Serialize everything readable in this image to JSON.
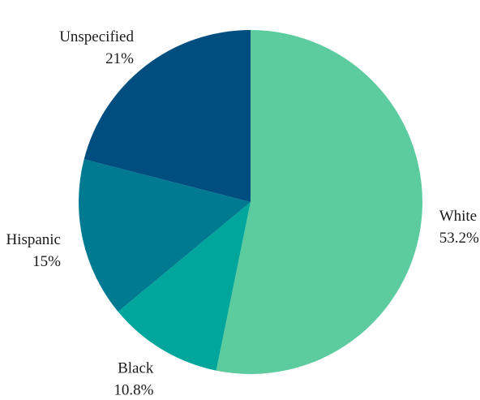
{
  "chart_data": {
    "type": "pie",
    "slices": [
      {
        "label": "White",
        "value_text": "53.2%",
        "value": 53.2,
        "color": "#5ccc9e"
      },
      {
        "label": "Black",
        "value_text": "10.8%",
        "value": 10.8,
        "color": "#00a69c"
      },
      {
        "label": "Hispanic",
        "value_text": "15%",
        "value": 15,
        "color": "#007a91"
      },
      {
        "label": "Unspecified",
        "value_text": "21%",
        "value": 21,
        "color": "#004d80"
      }
    ],
    "start_position": "12 o'clock",
    "direction": "clockwise",
    "legend": "none"
  }
}
